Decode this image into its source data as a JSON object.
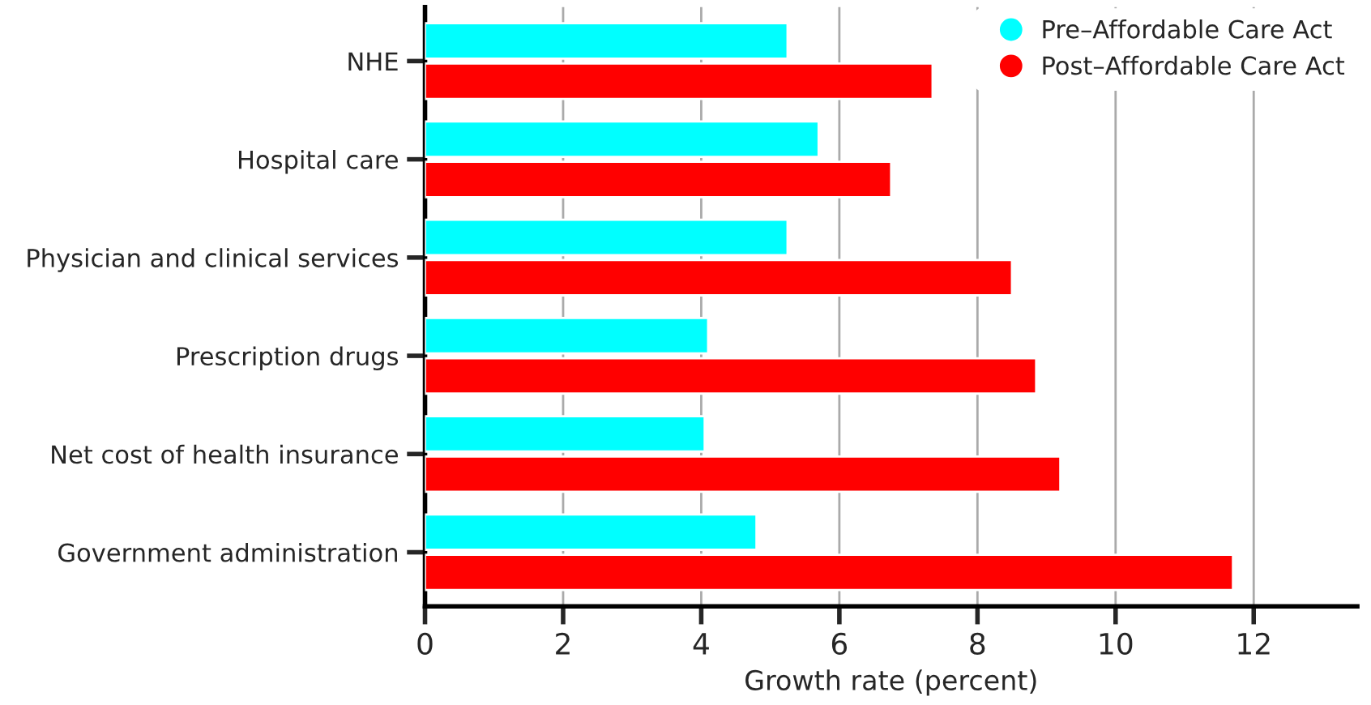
{
  "chart_data": {
    "type": "bar",
    "orientation": "horizontal",
    "xlabel": "Growth rate (percent)",
    "categories": [
      "NHE",
      "Hospital care",
      "Physician and clinical services",
      "Prescription drugs",
      "Net cost of health insurance",
      "Government administration"
    ],
    "series": [
      {
        "name": "Pre–Affordable Care Act",
        "color": "#00ffff",
        "values": [
          5.25,
          5.7,
          5.25,
          4.1,
          4.05,
          4.8
        ]
      },
      {
        "name": "Post–Affordable Care Act",
        "color": "#ff0000",
        "values": [
          7.35,
          6.75,
          8.5,
          8.85,
          9.2,
          11.7
        ]
      }
    ],
    "xlim": [
      0,
      13.5
    ],
    "xticks": [
      0,
      2,
      4,
      6,
      8,
      10,
      12
    ],
    "grid": "x",
    "legend": "top right"
  }
}
